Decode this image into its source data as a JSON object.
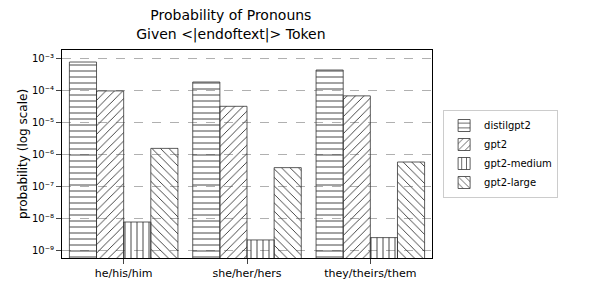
{
  "chart_data": {
    "type": "bar",
    "title": "Probability of Pronouns\nGiven <|endoftext|> Token",
    "y_label": "probability (log scale)",
    "categories": [
      "he/his/him",
      "she/her/hers",
      "they/theirs/them"
    ],
    "series": [
      {
        "name": "distilgpt2",
        "color": "#e8604c",
        "values": [
          0.0008,
          0.00019,
          0.00045
        ]
      },
      {
        "name": "gpt2",
        "color": "#f2c75c",
        "values": [
          0.0001,
          3.3e-05,
          7e-05
        ]
      },
      {
        "name": "gpt2-medium",
        "color": "#3aa89a",
        "values": [
          8e-09,
          2.2e-09,
          2.6e-09
        ]
      },
      {
        "name": "gpt2-large",
        "color": "#2f6f9f",
        "values": [
          1.6e-06,
          4e-07,
          6e-07
        ]
      }
    ],
    "log": "y",
    "ylim": [
      6e-10,
      0.0019
    ],
    "yticks": [
      {
        "value": 0.001,
        "label": "10⁻³"
      },
      {
        "value": 0.0001,
        "label": "10⁻⁴"
      },
      {
        "value": 1e-05,
        "label": "10⁻⁵"
      },
      {
        "value": 1e-06,
        "label": "10⁻⁶"
      },
      {
        "value": 1e-07,
        "label": "10⁻⁷"
      },
      {
        "value": 1e-08,
        "label": "10⁻⁸"
      },
      {
        "value": 1e-09,
        "label": "10⁻⁹"
      }
    ],
    "grid": true,
    "legend": "right"
  }
}
